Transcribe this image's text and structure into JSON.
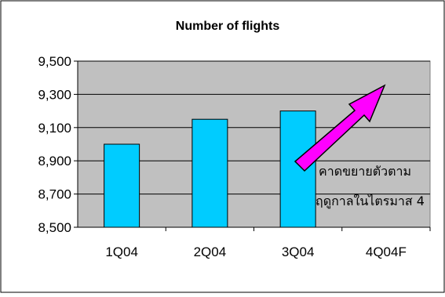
{
  "chart_data": {
    "type": "bar",
    "title": "Number of flights",
    "categories": [
      "1Q04",
      "2Q04",
      "3Q04",
      "4Q04F"
    ],
    "values": [
      9000,
      9150,
      9200,
      null
    ],
    "ylim": [
      8500,
      9500
    ],
    "yticks": [
      "9,500",
      "9,300",
      "9,100",
      "8,900",
      "8,700",
      "8,500"
    ],
    "ytick_values": [
      9500,
      9300,
      9100,
      8900,
      8700,
      8500
    ],
    "xlabel": "",
    "ylabel": "",
    "grid": true,
    "legend": "none",
    "annotation": {
      "lines": [
        "คาดขยายตัวตาม",
        "ฤดูกาลในไตรมาส 4"
      ],
      "arrow_color": "#ff00ff"
    },
    "colors": {
      "bar": "#00ccff",
      "plot_bg": "#c0c0c0",
      "gridline": "#000000"
    }
  }
}
